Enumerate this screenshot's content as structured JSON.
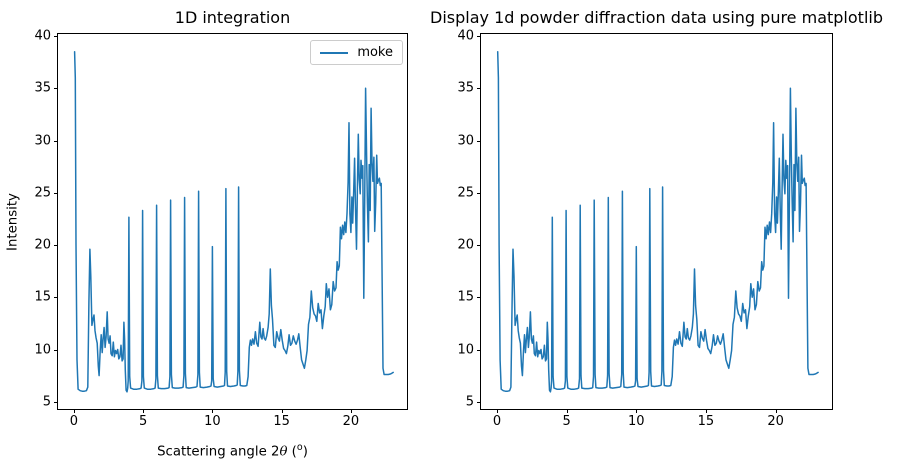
{
  "figure": {
    "background_color": "#ffffff",
    "text_color": "#000000"
  },
  "chart_data": {
    "type": "line",
    "grid": false,
    "line_color": "#1f77b4",
    "xlim": [
      -1.15,
      24.05
    ],
    "ylim": [
      4.3,
      40.2
    ],
    "xticks": [
      0,
      5,
      10,
      15,
      20
    ],
    "yticks": [
      5,
      10,
      15,
      20,
      25,
      30,
      35,
      40
    ],
    "subplots": [
      {
        "title": "1D integration",
        "xlabel": "Scattering angle 2θ (°)",
        "xlabel_parts": {
          "prefix": "Scattering angle 2",
          "theta": "θ",
          "paren_open": " (",
          "sup_o": "o",
          "paren_close": ")"
        },
        "ylabel": "Intensity",
        "legend": {
          "visible": true,
          "position": "upper right",
          "entries": [
            "moke"
          ]
        }
      },
      {
        "title": "Display 1d powder diffraction data using pure matplotlib",
        "xlabel": "",
        "ylabel": "",
        "legend": {
          "visible": false
        }
      }
    ],
    "series": [
      {
        "name": "moke",
        "color": "#1f77b4",
        "points": [
          [
            0.05,
            38.5
          ],
          [
            0.1,
            36.0
          ],
          [
            0.15,
            20.0
          ],
          [
            0.22,
            9.0
          ],
          [
            0.3,
            6.2
          ],
          [
            0.45,
            6.05
          ],
          [
            0.6,
            6.0
          ],
          [
            0.75,
            6.0
          ],
          [
            0.9,
            6.05
          ],
          [
            1.0,
            6.4
          ],
          [
            1.08,
            14.5
          ],
          [
            1.15,
            19.6
          ],
          [
            1.22,
            17.0
          ],
          [
            1.3,
            12.3
          ],
          [
            1.38,
            12.9
          ],
          [
            1.45,
            13.3
          ],
          [
            1.52,
            11.8
          ],
          [
            1.6,
            11.1
          ],
          [
            1.68,
            10.6
          ],
          [
            1.76,
            8.4
          ],
          [
            1.82,
            7.5
          ],
          [
            1.9,
            9.9
          ],
          [
            1.97,
            11.4
          ],
          [
            2.04,
            9.7
          ],
          [
            2.11,
            11.0
          ],
          [
            2.18,
            12.1
          ],
          [
            2.25,
            10.2
          ],
          [
            2.32,
            11.2
          ],
          [
            2.4,
            13.6
          ],
          [
            2.47,
            11.0
          ],
          [
            2.54,
            10.6
          ],
          [
            2.61,
            11.3
          ],
          [
            2.68,
            9.6
          ],
          [
            2.76,
            9.4
          ],
          [
            2.84,
            10.7
          ],
          [
            2.92,
            9.3
          ],
          [
            3.0,
            9.9
          ],
          [
            3.08,
            9.6
          ],
          [
            3.16,
            10.0
          ],
          [
            3.24,
            9.1
          ],
          [
            3.32,
            9.3
          ],
          [
            3.4,
            10.4
          ],
          [
            3.48,
            8.9
          ],
          [
            3.55,
            9.1
          ],
          [
            3.61,
            12.6
          ],
          [
            3.66,
            11.0
          ],
          [
            3.71,
            8.0
          ],
          [
            3.77,
            6.1
          ],
          [
            3.83,
            5.95
          ],
          [
            3.88,
            6.3
          ],
          [
            3.92,
            7.0
          ],
          [
            3.97,
            22.65
          ],
          [
            4.03,
            7.4
          ],
          [
            4.09,
            6.3
          ],
          [
            4.3,
            6.2
          ],
          [
            4.55,
            6.2
          ],
          [
            4.78,
            6.25
          ],
          [
            4.85,
            6.3
          ],
          [
            4.91,
            7.0
          ],
          [
            4.96,
            23.3
          ],
          [
            5.02,
            7.4
          ],
          [
            5.08,
            6.3
          ],
          [
            5.3,
            6.2
          ],
          [
            5.55,
            6.2
          ],
          [
            5.78,
            6.25
          ],
          [
            5.86,
            6.3
          ],
          [
            5.92,
            7.2
          ],
          [
            5.97,
            23.8
          ],
          [
            6.03,
            7.5
          ],
          [
            6.09,
            6.3
          ],
          [
            6.3,
            6.25
          ],
          [
            6.55,
            6.25
          ],
          [
            6.8,
            6.3
          ],
          [
            6.87,
            6.35
          ],
          [
            6.93,
            7.4
          ],
          [
            6.98,
            24.3
          ],
          [
            7.04,
            7.6
          ],
          [
            7.1,
            6.35
          ],
          [
            7.3,
            6.3
          ],
          [
            7.55,
            6.3
          ],
          [
            7.8,
            6.35
          ],
          [
            7.88,
            6.4
          ],
          [
            7.94,
            7.5
          ],
          [
            7.99,
            24.55
          ],
          [
            8.05,
            7.7
          ],
          [
            8.11,
            6.35
          ],
          [
            8.3,
            6.3
          ],
          [
            8.55,
            6.35
          ],
          [
            8.8,
            6.4
          ],
          [
            8.89,
            6.45
          ],
          [
            8.95,
            7.6
          ],
          [
            9.0,
            25.15
          ],
          [
            9.06,
            7.8
          ],
          [
            9.12,
            6.4
          ],
          [
            9.35,
            6.35
          ],
          [
            9.6,
            6.4
          ],
          [
            9.82,
            6.45
          ],
          [
            9.9,
            6.5
          ],
          [
            9.95,
            7.0
          ],
          [
            10.0,
            19.85
          ],
          [
            10.06,
            7.2
          ],
          [
            10.12,
            6.45
          ],
          [
            10.35,
            6.4
          ],
          [
            10.6,
            6.45
          ],
          [
            10.8,
            6.5
          ],
          [
            10.87,
            6.55
          ],
          [
            10.92,
            7.8
          ],
          [
            10.97,
            25.4
          ],
          [
            11.03,
            7.9
          ],
          [
            11.09,
            6.5
          ],
          [
            11.3,
            6.45
          ],
          [
            11.55,
            6.5
          ],
          [
            11.72,
            6.55
          ],
          [
            11.79,
            6.6
          ],
          [
            11.84,
            7.9
          ],
          [
            11.89,
            25.55
          ],
          [
            11.95,
            8.0
          ],
          [
            12.01,
            6.55
          ],
          [
            12.2,
            6.5
          ],
          [
            12.35,
            6.5
          ],
          [
            12.48,
            6.55
          ],
          [
            12.58,
            7.4
          ],
          [
            12.66,
            10.2
          ],
          [
            12.74,
            10.9
          ],
          [
            12.82,
            10.4
          ],
          [
            12.9,
            11.0
          ],
          [
            13.0,
            10.5
          ],
          [
            13.1,
            11.7
          ],
          [
            13.2,
            10.6
          ],
          [
            13.3,
            10.3
          ],
          [
            13.42,
            12.6
          ],
          [
            13.5,
            11.2
          ],
          [
            13.58,
            11.0
          ],
          [
            13.66,
            12.0
          ],
          [
            13.74,
            11.1
          ],
          [
            13.83,
            10.9
          ],
          [
            13.92,
            11.3
          ],
          [
            14.02,
            12.1
          ],
          [
            14.1,
            13.4
          ],
          [
            14.18,
            17.7
          ],
          [
            14.26,
            14.2
          ],
          [
            14.34,
            12.9
          ],
          [
            14.44,
            10.4
          ],
          [
            14.54,
            10.2
          ],
          [
            14.64,
            11.7
          ],
          [
            14.74,
            11.1
          ],
          [
            14.84,
            10.8
          ],
          [
            14.94,
            11.9
          ],
          [
            15.04,
            10.9
          ],
          [
            15.14,
            10.1
          ],
          [
            15.24,
            9.9
          ],
          [
            15.34,
            9.6
          ],
          [
            15.44,
            10.3
          ],
          [
            15.54,
            11.4
          ],
          [
            15.64,
            10.4
          ],
          [
            15.74,
            10.6
          ],
          [
            15.84,
            11.3
          ],
          [
            15.94,
            10.8
          ],
          [
            16.04,
            10.5
          ],
          [
            16.14,
            10.9
          ],
          [
            16.24,
            11.5
          ],
          [
            16.34,
            10.2
          ],
          [
            16.44,
            9.0
          ],
          [
            16.54,
            8.6
          ],
          [
            16.64,
            8.2
          ],
          [
            16.74,
            9.0
          ],
          [
            16.84,
            9.9
          ],
          [
            16.94,
            12.4
          ],
          [
            17.04,
            13.1
          ],
          [
            17.14,
            15.6
          ],
          [
            17.24,
            14.0
          ],
          [
            17.34,
            13.4
          ],
          [
            17.44,
            13.2
          ],
          [
            17.54,
            12.7
          ],
          [
            17.64,
            14.4
          ],
          [
            17.74,
            13.5
          ],
          [
            17.84,
            13.8
          ],
          [
            17.94,
            12.0
          ],
          [
            18.04,
            13.2
          ],
          [
            18.14,
            14.1
          ],
          [
            18.22,
            16.3
          ],
          [
            18.32,
            15.0
          ],
          [
            18.42,
            15.8
          ],
          [
            18.52,
            13.8
          ],
          [
            18.62,
            14.3
          ],
          [
            18.72,
            16.5
          ],
          [
            18.82,
            15.6
          ],
          [
            18.92,
            15.9
          ],
          [
            19.0,
            18.4
          ],
          [
            19.08,
            17.6
          ],
          [
            19.16,
            18.0
          ],
          [
            19.24,
            21.7
          ],
          [
            19.32,
            20.6
          ],
          [
            19.4,
            21.9
          ],
          [
            19.48,
            21.0
          ],
          [
            19.56,
            22.2
          ],
          [
            19.64,
            21.2
          ],
          [
            19.72,
            23.0
          ],
          [
            19.8,
            26.0
          ],
          [
            19.86,
            31.7
          ],
          [
            19.93,
            23.0
          ],
          [
            20.0,
            21.2
          ],
          [
            20.07,
            24.6
          ],
          [
            20.13,
            22.1
          ],
          [
            20.2,
            25.2
          ],
          [
            20.27,
            28.3
          ],
          [
            20.33,
            23.5
          ],
          [
            20.4,
            19.6
          ],
          [
            20.47,
            25.5
          ],
          [
            20.53,
            30.6
          ],
          [
            20.6,
            26.3
          ],
          [
            20.67,
            24.9
          ],
          [
            20.73,
            28.1
          ],
          [
            20.8,
            26.4
          ],
          [
            20.86,
            27.6
          ],
          [
            20.93,
            14.9
          ],
          [
            21.0,
            25.3
          ],
          [
            21.06,
            35.0
          ],
          [
            21.13,
            28.6
          ],
          [
            21.19,
            24.0
          ],
          [
            21.26,
            20.3
          ],
          [
            21.32,
            27.7
          ],
          [
            21.39,
            23.3
          ],
          [
            21.46,
            33.1
          ],
          [
            21.52,
            27.9
          ],
          [
            21.59,
            26.1
          ],
          [
            21.66,
            28.4
          ],
          [
            21.72,
            21.3
          ],
          [
            21.79,
            24.0
          ],
          [
            21.86,
            28.6
          ],
          [
            21.92,
            25.9
          ],
          [
            21.99,
            26.2
          ],
          [
            22.06,
            26.4
          ],
          [
            22.12,
            25.7
          ],
          [
            22.19,
            25.9
          ],
          [
            22.26,
            16.0
          ],
          [
            22.32,
            8.2
          ],
          [
            22.4,
            7.6
          ],
          [
            22.55,
            7.6
          ],
          [
            22.7,
            7.6
          ],
          [
            22.85,
            7.65
          ],
          [
            22.95,
            7.72
          ],
          [
            23.05,
            7.8
          ]
        ]
      }
    ]
  }
}
